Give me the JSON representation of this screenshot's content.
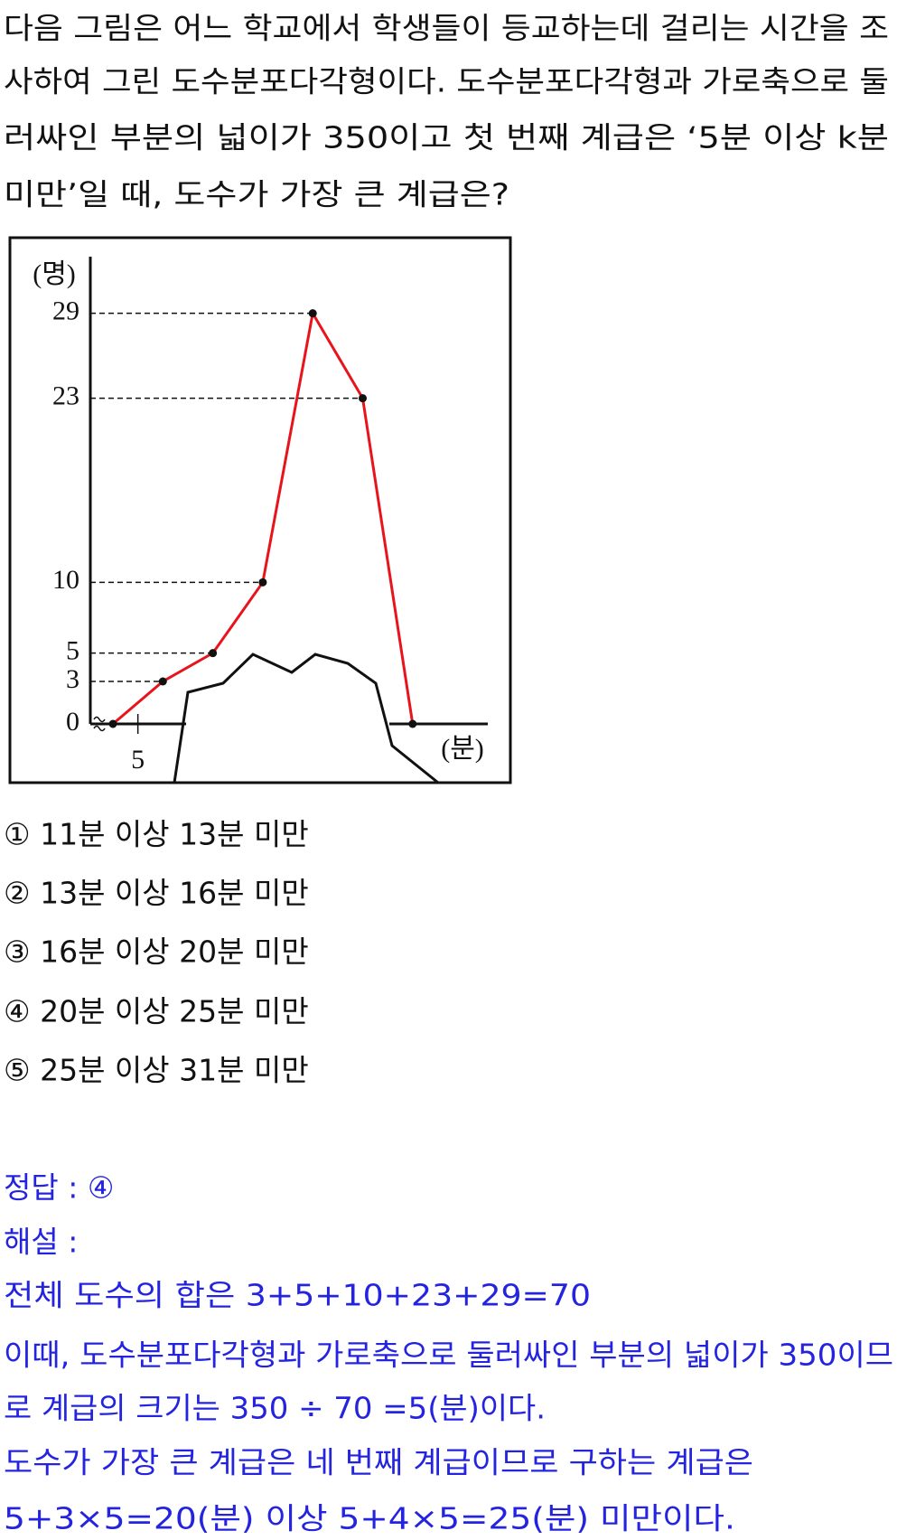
{
  "question": {
    "lines": [
      "다음 그림은 어느 학교에서 학생들이 등교하는데 걸리는 시간을 조",
      "사하여 그린 도수분포다각형이다. 도수분포다각형과 가로축으로 둘",
      "러싸인 부분의 넓이가 350이고 첫 번째 계급은 ‘5분 이상 k분",
      "미만’일 때, 도수가 가장 큰 계급은?"
    ]
  },
  "chart": {
    "type": "line",
    "y_label": "(명)",
    "x_label": "(분)",
    "categories": [
      null,
      null,
      null,
      null,
      null,
      null,
      null
    ],
    "values": [
      0,
      3,
      5,
      10,
      29,
      23,
      0
    ],
    "color": "#e8141c",
    "ylim": [
      0,
      33
    ],
    "yticks": [
      0,
      3,
      5,
      10,
      23,
      29
    ],
    "xticks": [
      5
    ]
  },
  "choices": [
    "① 11분 이상 13분 미만",
    "② 13분 이상 16분 미만",
    "③ 16분 이상 20분 미만",
    "④ 20분 이상 25분 미만",
    "⑤ 25분 이상 31분 미만"
  ],
  "solution": {
    "lines": [
      "정답 : ④",
      "해설 :",
      "전체 도수의 합은 3+5+10+23+29=70",
      "이때, 도수분포다각형과 가로축으로 둘러싸인 부분의 넓이가 350이므",
      "로 계급의 크기는 350 ÷ 70 =5(분)이다.",
      "도수가 가장 큰 계급은 네 번째 계급이므로 구하는 계급은",
      "5+3×5=20(분) 이상 5+4×5=25(분) 미만이다."
    ]
  }
}
